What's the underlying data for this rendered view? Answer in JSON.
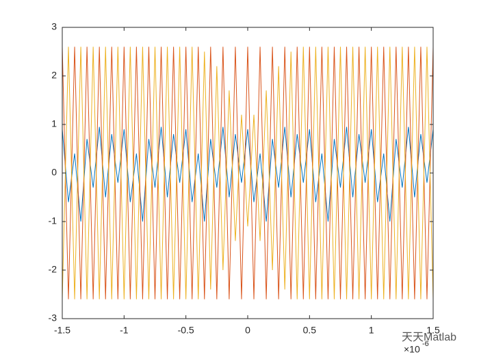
{
  "chart_data": {
    "type": "line",
    "x": [
      -1.5,
      -1.45,
      -1.4,
      -1.35,
      -1.3,
      -1.25,
      -1.2,
      -1.15,
      -1.1,
      -1.05,
      -1,
      -0.95,
      -0.9,
      -0.85,
      -0.8,
      -0.75,
      -0.7,
      -0.65,
      -0.6,
      -0.55,
      -0.5,
      -0.45,
      -0.4,
      -0.35,
      -0.3,
      -0.25,
      -0.2,
      -0.15,
      -0.1,
      -0.05,
      0,
      0.05,
      0.1,
      0.15,
      0.2,
      0.25,
      0.3,
      0.35,
      0.4,
      0.45,
      0.5,
      0.55,
      0.6,
      0.65,
      0.7,
      0.75,
      0.8,
      0.85,
      0.9,
      0.95,
      1,
      1.05,
      1.1,
      1.15,
      1.2,
      1.25,
      1.3,
      1.35,
      1.4,
      1.45,
      1.5
    ],
    "series": [
      {
        "color": "#0072BD",
        "values": [
          0.9,
          -0.6,
          0.4,
          -1,
          0.7,
          -0.3,
          0.95,
          -0.5,
          0.8,
          -0.2,
          0.9,
          -0.6,
          0.4,
          -1,
          0.7,
          -0.3,
          0.95,
          -0.5,
          0.8,
          -0.2,
          0.9,
          -0.6,
          0.4,
          -1,
          0.7,
          -0.3,
          0.95,
          -0.5,
          0.8,
          -0.2,
          0.9,
          -0.6,
          0.4,
          -1,
          0.7,
          -0.3,
          0.95,
          -0.5,
          0.8,
          -0.2,
          0.9,
          -0.6,
          0.4,
          -1,
          0.7,
          -0.3,
          0.95,
          -0.5,
          0.8,
          -0.2,
          0.9,
          -0.6,
          0.4,
          -1,
          0.7,
          -0.3,
          0.95,
          -0.5,
          0.8,
          -0.2,
          0.9
        ]
      },
      {
        "color": "#D95319",
        "values": [
          2.6,
          -2.6,
          2.6,
          -2.6,
          2.6,
          -2.6,
          2.6,
          -2.6,
          2.6,
          -2.6,
          2.6,
          -2.6,
          2.6,
          -2.6,
          2.6,
          -2.6,
          2.6,
          -2.6,
          2.6,
          -2.6,
          2.6,
          -2.6,
          2.6,
          -2.6,
          2.6,
          -2.6,
          2.6,
          -2.6,
          2.6,
          -2.6,
          2.6,
          -2.6,
          2.6,
          -2.6,
          2.6,
          -2.6,
          2.6,
          -2.6,
          2.6,
          -2.6,
          2.6,
          -2.6,
          2.6,
          -2.6,
          2.6,
          -2.6,
          2.6,
          -2.6,
          2.6,
          -2.6,
          2.6,
          -2.6,
          2.6,
          -2.6,
          2.6,
          -2.6,
          2.6,
          -2.6,
          2.6,
          -2.6,
          2.6
        ]
      },
      {
        "color": "#EDB120",
        "values": [
          -2.6,
          2.6,
          -2.6,
          2.6,
          -2.6,
          2.6,
          -2.6,
          2.6,
          -2.6,
          2.6,
          -2.6,
          2.6,
          -2.6,
          2.6,
          -2.6,
          2.6,
          -2.6,
          2.6,
          -2.6,
          2.6,
          -2.6,
          2.6,
          -2.6,
          2.5,
          -2.4,
          2.2,
          -2,
          1.7,
          -1.4,
          1.2,
          -1.1,
          1.2,
          -1.4,
          1.7,
          -2,
          2.2,
          -2.4,
          2.5,
          -2.6,
          2.6,
          -2.6,
          2.6,
          -2.6,
          2.6,
          -2.6,
          2.6,
          -2.6,
          2.6,
          -2.6,
          2.6,
          -2.6,
          2.6,
          -2.6,
          2.6,
          -2.6,
          2.6,
          -2.6,
          2.6,
          -2.6,
          2.6,
          -2.6
        ]
      }
    ],
    "xlim": [
      -1.5,
      1.5
    ],
    "xticks": [
      -1.5,
      -1,
      -0.5,
      0,
      0.5,
      1,
      1.5
    ],
    "ylim": [
      -3,
      3
    ],
    "yticks": [
      -3,
      -2,
      -1,
      0,
      1,
      2,
      3
    ],
    "x_multiplier_base": "×10",
    "x_multiplier_exponent": "-6",
    "watermark": "天天Matlab"
  }
}
